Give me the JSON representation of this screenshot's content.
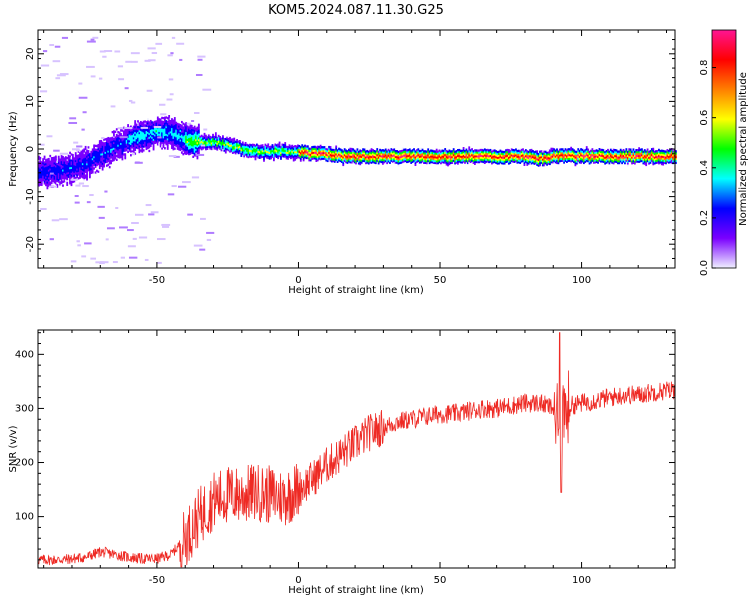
{
  "figure": {
    "title": "KOM5.2024.087.11.30.G25"
  },
  "chart_data": [
    {
      "type": "heatmap",
      "xlabel": "Height of straight line (km)",
      "ylabel": "Frequency (Hz)",
      "xlim": [
        -92,
        133
      ],
      "ylim": [
        -25,
        25
      ],
      "xticks": [
        -50,
        0,
        50,
        100
      ],
      "yticks": [
        -20,
        -10,
        0,
        10,
        20
      ],
      "grid": false,
      "ridge": {
        "description_free": true,
        "x": [
          -92,
          -85,
          -80,
          -75,
          -70,
          -65,
          -60,
          -55,
          -50,
          -45,
          -40,
          -35,
          -30,
          -25,
          -20,
          -15,
          -10,
          -5,
          0,
          5,
          10,
          15,
          20,
          25,
          30,
          35,
          40,
          45,
          50,
          55,
          60,
          65,
          70,
          75,
          80,
          85,
          90,
          95,
          100,
          105,
          110,
          115,
          120,
          125,
          133
        ],
        "y": [
          -5,
          -4.5,
          -4,
          -3,
          -1,
          0.5,
          2,
          3,
          3.5,
          3.5,
          2,
          1.5,
          1.5,
          1,
          0,
          -0.5,
          -0.5,
          -0.5,
          -0.5,
          -1,
          -1,
          -1.5,
          -1.5,
          -1.5,
          -1.5,
          -1.5,
          -1.5,
          -1.5,
          -1.5,
          -1.5,
          -1.5,
          -1.5,
          -1.5,
          -1.5,
          -1.5,
          -2,
          -1.5,
          -1.5,
          -1.5,
          -1.5,
          -1.5,
          -1.5,
          -1.5,
          -1.5,
          -1.5
        ]
      },
      "colorbar": {
        "label": "Normalized spectral amplitude",
        "range": [
          0,
          0.95
        ],
        "ticks": [
          0.0,
          0.2,
          0.4,
          0.6,
          0.8
        ],
        "colormap": [
          "#f0f0ff",
          "#7a00ff",
          "#0000ff",
          "#00ffff",
          "#00ff00",
          "#ffff00",
          "#ff7f00",
          "#ff0000",
          "#ff1493"
        ]
      }
    },
    {
      "type": "line",
      "xlabel": "Height of straight line (km)",
      "ylabel": "SNR (v/v)",
      "xlim": [
        -92,
        133
      ],
      "ylim": [
        5,
        445
      ],
      "xticks": [
        -50,
        0,
        50,
        100
      ],
      "yticks": [
        100,
        200,
        300,
        400
      ],
      "grid": false,
      "color": "#ee2a24",
      "x": [
        -92,
        -85,
        -80,
        -75,
        -70,
        -65,
        -60,
        -55,
        -50,
        -45,
        -40,
        -35,
        -30,
        -25,
        -20,
        -15,
        -10,
        -5,
        0,
        5,
        10,
        15,
        20,
        25,
        30,
        35,
        40,
        45,
        50,
        55,
        60,
        65,
        70,
        75,
        80,
        85,
        90,
        92,
        94,
        96,
        100,
        105,
        110,
        115,
        120,
        125,
        133
      ],
      "y": [
        20,
        20,
        22,
        25,
        35,
        30,
        25,
        22,
        22,
        30,
        60,
        100,
        130,
        140,
        140,
        145,
        140,
        135,
        150,
        170,
        195,
        215,
        235,
        255,
        265,
        275,
        280,
        285,
        290,
        290,
        295,
        300,
        300,
        305,
        310,
        310,
        300,
        290,
        300,
        305,
        310,
        315,
        320,
        325,
        325,
        330,
        335
      ]
    }
  ]
}
